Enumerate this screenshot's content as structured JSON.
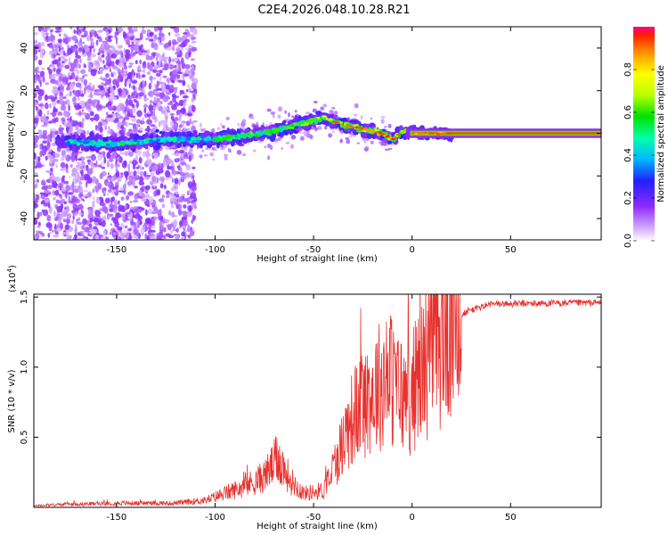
{
  "title": "C2E4.2026.048.10.28.R21",
  "chart_data": [
    {
      "type": "heatmap",
      "xlabel": "Height of straight line (km)",
      "ylabel": "Frequency (Hz)",
      "xlim": [
        -192,
        96
      ],
      "ylim": [
        -50,
        50
      ],
      "x_ticks": [
        -150,
        -100,
        -50,
        0,
        50
      ],
      "y_ticks": [
        -40,
        -20,
        0,
        20,
        40
      ],
      "ridge_center_hz": [
        {
          "x": -175,
          "f": -4
        },
        {
          "x": -150,
          "f": -5
        },
        {
          "x": -125,
          "f": -3
        },
        {
          "x": -100,
          "f": -3
        },
        {
          "x": -85,
          "f": -1
        },
        {
          "x": -70,
          "f": 1
        },
        {
          "x": -55,
          "f": 5
        },
        {
          "x": -45,
          "f": 7
        },
        {
          "x": -35,
          "f": 4
        },
        {
          "x": -25,
          "f": 2
        },
        {
          "x": -15,
          "f": 0
        },
        {
          "x": -10,
          "f": -3
        },
        {
          "x": -5,
          "f": 1
        },
        {
          "x": 0,
          "f": 0
        },
        {
          "x": 96,
          "f": 0
        }
      ],
      "colorbar": {
        "label": "Normalized spectral amplitude",
        "range": [
          0,
          1
        ],
        "ticks": [
          "0.0",
          "0.2",
          "0.4",
          "0.6",
          "0.8"
        ],
        "tick_values": [
          0,
          0.2,
          0.4,
          0.6,
          0.8
        ]
      }
    },
    {
      "type": "line",
      "xlabel": "Height of straight line (km)",
      "ylabel": "SNR (10 * v/v)",
      "y_multiplier": "(x10",
      "y_multiplier_exp": "4",
      "y_multiplier_close": ")",
      "xlim": [
        -192,
        96
      ],
      "ylim": [
        0,
        1.52
      ],
      "x_ticks": [
        -150,
        -100,
        -50,
        0,
        50
      ],
      "y_ticks": [
        "0.5",
        "1.0",
        "1.5"
      ],
      "y_tick_values": [
        0.5,
        1.0,
        1.5
      ],
      "color": "#e8312e",
      "envelope": [
        {
          "x": -192,
          "y": 0.01
        },
        {
          "x": -180,
          "y": 0.02
        },
        {
          "x": -150,
          "y": 0.03
        },
        {
          "x": -120,
          "y": 0.03
        },
        {
          "x": -105,
          "y": 0.05
        },
        {
          "x": -95,
          "y": 0.1
        },
        {
          "x": -85,
          "y": 0.15
        },
        {
          "x": -75,
          "y": 0.22
        },
        {
          "x": -68,
          "y": 0.35
        },
        {
          "x": -62,
          "y": 0.2
        },
        {
          "x": -55,
          "y": 0.1
        },
        {
          "x": -45,
          "y": 0.12
        },
        {
          "x": -38,
          "y": 0.35
        },
        {
          "x": -32,
          "y": 0.6
        },
        {
          "x": -25,
          "y": 0.75
        },
        {
          "x": -18,
          "y": 0.85
        },
        {
          "x": -12,
          "y": 0.95
        },
        {
          "x": -8,
          "y": 0.85
        },
        {
          "x": -2,
          "y": 0.75
        },
        {
          "x": 5,
          "y": 1.0
        },
        {
          "x": 12,
          "y": 1.15
        },
        {
          "x": 20,
          "y": 1.3
        },
        {
          "x": 28,
          "y": 1.4
        },
        {
          "x": 40,
          "y": 1.45
        },
        {
          "x": 96,
          "y": 1.46
        }
      ]
    }
  ]
}
